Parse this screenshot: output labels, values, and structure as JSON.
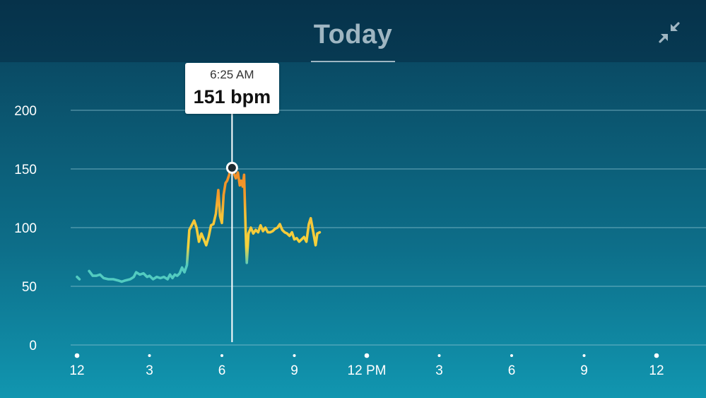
{
  "header": {
    "title": "Today",
    "collapse_icon": "collapse-arrows-icon"
  },
  "tooltip": {
    "time": "6:25 AM",
    "value": "151 bpm"
  },
  "colors": {
    "low": "#52cbc0",
    "mid": "#f5d33c",
    "high": "#f39a2a",
    "grid": "#8ec5d3",
    "text": "#ffffff"
  },
  "chart_data": {
    "type": "line",
    "title": "",
    "xlabel": "",
    "ylabel": "",
    "ylim": [
      0,
      230
    ],
    "yticks": [
      0,
      50,
      100,
      150,
      200
    ],
    "xlim": [
      0,
      24
    ],
    "xticks": [
      {
        "x": 0,
        "label": "12"
      },
      {
        "x": 3,
        "label": "3"
      },
      {
        "x": 6,
        "label": "6"
      },
      {
        "x": 9,
        "label": "9"
      },
      {
        "x": 12,
        "label": "12 PM"
      },
      {
        "x": 15,
        "label": "3"
      },
      {
        "x": 18,
        "label": "6"
      },
      {
        "x": 21,
        "label": "9"
      },
      {
        "x": 24,
        "label": "12"
      }
    ],
    "highlight": {
      "x": 6.42,
      "y": 151
    },
    "series": [
      {
        "values": [
          [
            0.0,
            58
          ],
          [
            0.1,
            56
          ]
        ]
      },
      {
        "values": [
          [
            0.5,
            63
          ],
          [
            0.65,
            59
          ],
          [
            0.8,
            59
          ],
          [
            0.95,
            60
          ],
          [
            1.1,
            57
          ],
          [
            1.3,
            56
          ],
          [
            1.5,
            56
          ],
          [
            1.7,
            55
          ],
          [
            1.85,
            54
          ],
          [
            2.0,
            55
          ],
          [
            2.2,
            56
          ],
          [
            2.35,
            58
          ],
          [
            2.45,
            62
          ],
          [
            2.6,
            60
          ],
          [
            2.75,
            61
          ],
          [
            2.9,
            58
          ],
          [
            3.0,
            59
          ],
          [
            3.15,
            56
          ],
          [
            3.3,
            58
          ],
          [
            3.45,
            57
          ],
          [
            3.6,
            58
          ],
          [
            3.75,
            56
          ],
          [
            3.85,
            60
          ],
          [
            3.95,
            57
          ],
          [
            4.05,
            60
          ],
          [
            4.15,
            59
          ],
          [
            4.25,
            61
          ],
          [
            4.35,
            66
          ],
          [
            4.45,
            62
          ],
          [
            4.55,
            68
          ],
          [
            4.65,
            98
          ],
          [
            4.75,
            102
          ],
          [
            4.85,
            106
          ],
          [
            4.95,
            100
          ],
          [
            5.05,
            88
          ],
          [
            5.15,
            95
          ],
          [
            5.25,
            90
          ],
          [
            5.35,
            85
          ],
          [
            5.45,
            92
          ],
          [
            5.55,
            102
          ],
          [
            5.65,
            103
          ],
          [
            5.75,
            112
          ],
          [
            5.85,
            132
          ],
          [
            5.92,
            110
          ],
          [
            6.0,
            104
          ],
          [
            6.07,
            128
          ],
          [
            6.15,
            138
          ],
          [
            6.22,
            140
          ],
          [
            6.3,
            145
          ],
          [
            6.36,
            151
          ],
          [
            6.42,
            151
          ],
          [
            6.5,
            146
          ],
          [
            6.58,
            142
          ],
          [
            6.66,
            147
          ],
          [
            6.74,
            136
          ],
          [
            6.8,
            140
          ],
          [
            6.86,
            135
          ],
          [
            6.92,
            145
          ],
          [
            6.98,
            100
          ],
          [
            7.03,
            70
          ],
          [
            7.1,
            95
          ],
          [
            7.2,
            100
          ],
          [
            7.3,
            95
          ],
          [
            7.4,
            98
          ],
          [
            7.5,
            96
          ],
          [
            7.6,
            102
          ],
          [
            7.7,
            97
          ],
          [
            7.8,
            100
          ],
          [
            7.9,
            96
          ],
          [
            8.0,
            96
          ],
          [
            8.1,
            97
          ],
          [
            8.2,
            99
          ],
          [
            8.3,
            100
          ],
          [
            8.4,
            103
          ],
          [
            8.5,
            98
          ],
          [
            8.6,
            96
          ],
          [
            8.7,
            95
          ],
          [
            8.8,
            93
          ],
          [
            8.9,
            96
          ],
          [
            9.0,
            90
          ],
          [
            9.1,
            91
          ],
          [
            9.2,
            88
          ],
          [
            9.3,
            90
          ],
          [
            9.4,
            92
          ],
          [
            9.5,
            88
          ],
          [
            9.6,
            103
          ],
          [
            9.68,
            108
          ],
          [
            9.75,
            100
          ],
          [
            9.82,
            92
          ],
          [
            9.88,
            85
          ],
          [
            9.95,
            95
          ],
          [
            10.05,
            96
          ]
        ]
      }
    ]
  }
}
